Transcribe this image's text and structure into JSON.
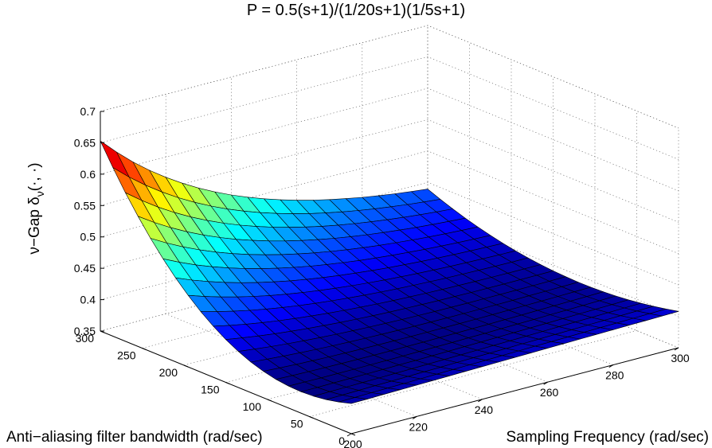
{
  "chart_data": {
    "type": "surface",
    "title": "P = 0.5(s+1)/(1/20s+1)(1/5s+1)",
    "xlabel": "Sampling Frequency (rad/sec)",
    "ylabel": "Anti−aliasing filter bandwidth (rad/sec)",
    "zlabel_prefix": "ν−Gap δ",
    "zlabel_sub": "ν",
    "zlabel_suffix": "(·, ·)",
    "xlim": [
      200,
      300
    ],
    "ylim": [
      0,
      300
    ],
    "zlim": [
      0.35,
      0.7
    ],
    "x_ticks": [
      "200",
      "220",
      "240",
      "260",
      "280",
      "300"
    ],
    "y_ticks": [
      "0",
      "50",
      "100",
      "150",
      "200",
      "250",
      "300"
    ],
    "z_ticks": [
      "0.35",
      "0.4",
      "0.45",
      "0.5",
      "0.55",
      "0.6",
      "0.65",
      "0.7"
    ],
    "grid": true,
    "colormap": "jet",
    "surface_samples": [
      {
        "x": 200,
        "y": 300,
        "z": 0.65
      },
      {
        "x": 300,
        "y": 300,
        "z": 0.4
      },
      {
        "x": 200,
        "y": 0,
        "z": 0.4
      },
      {
        "x": 300,
        "y": 0,
        "z": 0.4
      },
      {
        "x": 250,
        "y": 150,
        "z": 0.45
      },
      {
        "x": 200,
        "y": 150,
        "z": 0.41
      },
      {
        "x": 250,
        "y": 300,
        "z": 0.56
      }
    ]
  }
}
